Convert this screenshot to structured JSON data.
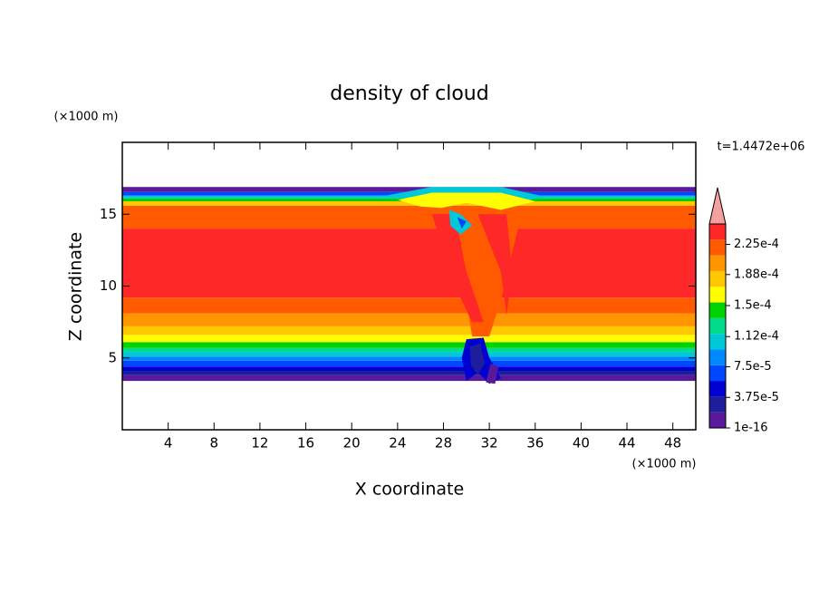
{
  "chart_data": {
    "type": "contour",
    "title": "density of cloud",
    "x_label": "X coordinate",
    "y_label": "Z coordinate",
    "x_unit": "(×1000 m)",
    "y_unit": "(×1000 m)",
    "annotation": "t=1.4472e+06",
    "xlim": [
      0,
      50
    ],
    "ylim": [
      0,
      20
    ],
    "xticks": [
      4,
      8,
      12,
      16,
      20,
      24,
      28,
      32,
      36,
      40,
      44,
      48
    ],
    "yticks": [
      5,
      10,
      15
    ],
    "clim": [
      0,
      0.00025
    ],
    "colorbar_ticks": [
      {
        "value": 1e-16,
        "label": "1e-16"
      },
      {
        "value": 3.75e-05,
        "label": "3.75e-5"
      },
      {
        "value": 7.5e-05,
        "label": "7.5e-5"
      },
      {
        "value": 0.000112,
        "label": "1.12e-4"
      },
      {
        "value": 0.00015,
        "label": "1.5e-4"
      },
      {
        "value": 0.000188,
        "label": "1.88e-4"
      },
      {
        "value": 0.000225,
        "label": "2.25e-4"
      }
    ],
    "colors": [
      "#5a189a",
      "#1e1e9c",
      "#0000d2",
      "#0046ff",
      "#0088ff",
      "#00c8d8",
      "#00dc8c",
      "#00d200",
      "#ffff00",
      "#ffc800",
      "#ff9600",
      "#ff5a00",
      "#ff2828"
    ],
    "over_color": "#f4a0a0"
  }
}
